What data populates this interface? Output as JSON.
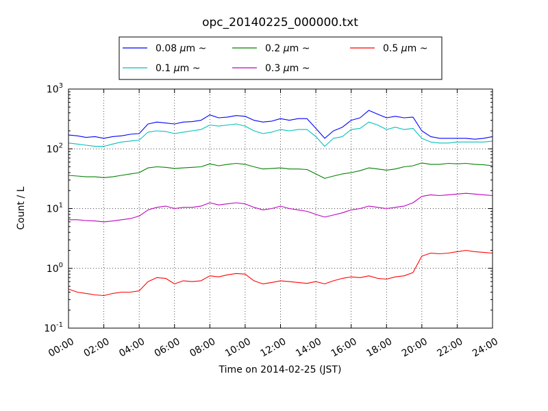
{
  "chart_data": {
    "type": "line",
    "title": "opc_20140225_000000.txt",
    "xlabel": "Time on 2014-02-25 (JST)",
    "ylabel": "Count / L",
    "x_unit": "hours",
    "xlim": [
      0,
      24
    ],
    "ylim": [
      0.1,
      1000
    ],
    "yscale": "log",
    "grid": true,
    "legend_placement": "top-center-outside",
    "x_ticks": [
      "00:00",
      "02:00",
      "04:00",
      "06:00",
      "08:00",
      "10:00",
      "12:00",
      "14:00",
      "16:00",
      "18:00",
      "20:00",
      "22:00",
      "24:00"
    ],
    "y_ticks": [
      {
        "base": "10",
        "exp": "-1",
        "value": 0.1
      },
      {
        "base": "10",
        "exp": "0",
        "value": 1
      },
      {
        "base": "10",
        "exp": "1",
        "value": 10
      },
      {
        "base": "10",
        "exp": "2",
        "value": 100
      },
      {
        "base": "10",
        "exp": "3",
        "value": 1000
      }
    ],
    "x": [
      0,
      0.5,
      1,
      1.5,
      2,
      2.5,
      3,
      3.5,
      4,
      4.5,
      5,
      5.5,
      6,
      6.5,
      7,
      7.5,
      8,
      8.5,
      9,
      9.5,
      10,
      10.5,
      11,
      11.5,
      12,
      12.5,
      13,
      13.5,
      14,
      14.5,
      15,
      15.5,
      16,
      16.5,
      17,
      17.5,
      18,
      18.5,
      19,
      19.5,
      20,
      20.5,
      21,
      21.5,
      22,
      22.5,
      23,
      23.5,
      24
    ],
    "series": [
      {
        "name": "0.08",
        "unit": "μm",
        "suffix": "~",
        "color": "#0000ff",
        "values": [
          170,
          165,
          155,
          160,
          150,
          160,
          165,
          175,
          180,
          260,
          280,
          270,
          260,
          280,
          285,
          300,
          370,
          330,
          340,
          360,
          350,
          300,
          280,
          290,
          320,
          300,
          320,
          320,
          220,
          150,
          200,
          230,
          300,
          330,
          440,
          380,
          330,
          350,
          330,
          340,
          200,
          160,
          150,
          150,
          150,
          150,
          145,
          150,
          160
        ]
      },
      {
        "name": "0.1",
        "unit": "μm",
        "suffix": "~",
        "color": "#00bfbf",
        "values": [
          125,
          120,
          115,
          110,
          110,
          120,
          130,
          135,
          140,
          190,
          200,
          195,
          180,
          190,
          200,
          210,
          250,
          240,
          250,
          260,
          240,
          200,
          180,
          190,
          210,
          200,
          210,
          210,
          160,
          110,
          150,
          160,
          210,
          220,
          280,
          250,
          210,
          230,
          210,
          220,
          150,
          130,
          125,
          125,
          130,
          130,
          130,
          130,
          135
        ]
      },
      {
        "name": "0.2",
        "unit": "μm",
        "suffix": "~",
        "color": "#008000",
        "values": [
          36,
          35,
          34,
          34,
          33,
          34,
          36,
          38,
          40,
          48,
          50,
          49,
          47,
          48,
          49,
          50,
          56,
          52,
          55,
          57,
          55,
          50,
          46,
          47,
          48,
          46,
          46,
          45,
          38,
          32,
          35,
          38,
          40,
          43,
          48,
          46,
          44,
          46,
          50,
          52,
          58,
          55,
          55,
          57,
          56,
          57,
          55,
          54,
          52
        ]
      },
      {
        "name": "0.3",
        "unit": "μm",
        "suffix": "~",
        "color": "#bf00bf",
        "values": [
          6.5,
          6.5,
          6.3,
          6.2,
          6.0,
          6.2,
          6.5,
          6.8,
          7.5,
          9.5,
          10.5,
          11,
          10,
          10.5,
          10.5,
          11,
          12.5,
          11.5,
          12,
          12.5,
          12,
          10.5,
          9.5,
          10,
          11,
          10,
          9.5,
          9,
          8,
          7.2,
          7.8,
          8.5,
          9.5,
          10,
          11,
          10.5,
          10,
          10.5,
          11,
          12.5,
          16,
          17,
          16.5,
          17,
          17.5,
          18,
          17.5,
          17,
          16.5
        ]
      },
      {
        "name": "0.5",
        "unit": "μm",
        "suffix": "~",
        "color": "#ff0000",
        "values": [
          0.45,
          0.4,
          0.38,
          0.36,
          0.35,
          0.38,
          0.4,
          0.4,
          0.42,
          0.6,
          0.7,
          0.68,
          0.55,
          0.62,
          0.6,
          0.62,
          0.75,
          0.72,
          0.78,
          0.82,
          0.8,
          0.62,
          0.55,
          0.58,
          0.62,
          0.6,
          0.58,
          0.56,
          0.6,
          0.55,
          0.62,
          0.68,
          0.72,
          0.7,
          0.75,
          0.68,
          0.66,
          0.72,
          0.75,
          0.85,
          1.6,
          1.8,
          1.75,
          1.8,
          1.9,
          2.0,
          1.9,
          1.85,
          1.8
        ]
      }
    ]
  }
}
